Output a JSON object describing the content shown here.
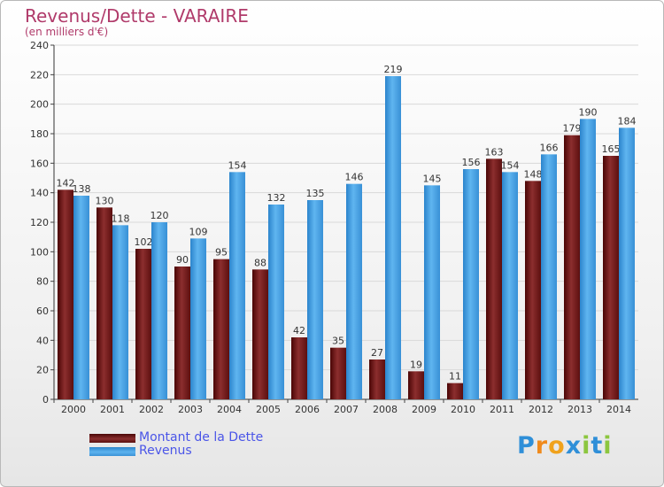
{
  "title": "Revenus/Dette - VARAIRE",
  "subtitle": "(en milliers d'€)",
  "logo": {
    "text": "Proxiti",
    "letters": [
      "P",
      "r",
      "o",
      "x",
      "i",
      "t",
      "i"
    ],
    "colors": [
      "#2f8fd8",
      "#f08a1c",
      "#f0a21c",
      "#2f8fd8",
      "#8cc63f",
      "#2f8fd8",
      "#8cc63f"
    ]
  },
  "chart_data": {
    "type": "bar",
    "categories": [
      "2000",
      "2001",
      "2002",
      "2003",
      "2004",
      "2005",
      "2006",
      "2007",
      "2008",
      "2009",
      "2010",
      "2011",
      "2012",
      "2013",
      "2014"
    ],
    "series": [
      {
        "name": "Montant de la Dette",
        "color": "#7a1f1f",
        "values": [
          142,
          130,
          102,
          90,
          95,
          88,
          42,
          35,
          27,
          19,
          11,
          163,
          148,
          179,
          165
        ]
      },
      {
        "name": "Revenus",
        "color": "#4aa3e6",
        "values": [
          138,
          118,
          120,
          109,
          154,
          132,
          135,
          146,
          219,
          145,
          156,
          154,
          166,
          190,
          184
        ]
      }
    ],
    "ylim": [
      0,
      240
    ],
    "yticks": [
      0,
      20,
      40,
      60,
      80,
      100,
      120,
      140,
      160,
      180,
      200,
      220,
      240
    ],
    "grid": true,
    "legend_position": "bottom-left"
  }
}
